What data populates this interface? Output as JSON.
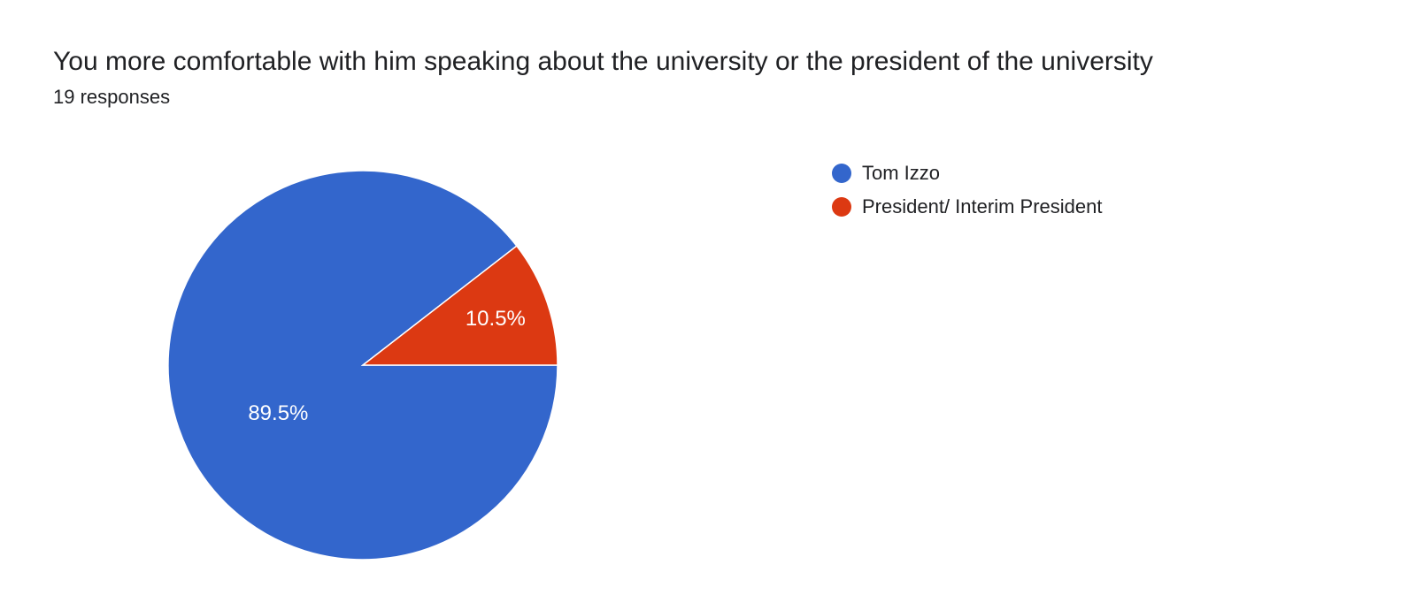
{
  "header": {
    "title": "You more comfortable with him speaking about the university or the president of the university",
    "subtitle": "19 responses"
  },
  "chart": {
    "type": "pie",
    "background_color": "#ffffff",
    "stroke_color": "#ffffff",
    "stroke_width": 1.5,
    "radius": 220,
    "title_fontsize": 30,
    "subtitle_fontsize": 22,
    "legend_fontsize": 22,
    "slice_label_fontsize": 24,
    "slice_label_color": "#ffffff",
    "text_color": "#202124",
    "slices": [
      {
        "label": "Tom Izzo",
        "pct": 89.5,
        "pct_label": "89.5%",
        "color": "#3366cc"
      },
      {
        "label": "President/ Interim President",
        "pct": 10.5,
        "pct_label": "10.5%",
        "color": "#dc3912"
      }
    ]
  }
}
